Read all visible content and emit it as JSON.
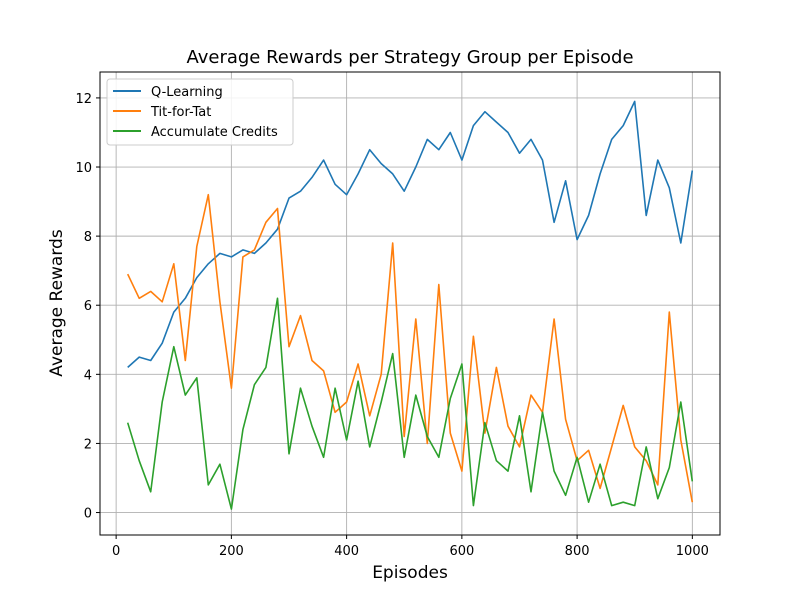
{
  "chart_data": {
    "type": "line",
    "title": "Average Rewards per Strategy Group per Episode",
    "xlabel": "Episodes",
    "ylabel": "Average Rewards",
    "xlim": [
      -28,
      1048
    ],
    "ylim": [
      -0.65,
      12.75
    ],
    "xticks": [
      "0",
      "200",
      "400",
      "600",
      "800",
      "1000"
    ],
    "yticks": [
      "0",
      "2",
      "4",
      "6",
      "8",
      "10",
      "12"
    ],
    "grid": true,
    "legend_position": "top-left",
    "x": [
      20,
      40,
      60,
      80,
      100,
      120,
      140,
      160,
      180,
      200,
      220,
      240,
      260,
      280,
      300,
      320,
      340,
      360,
      380,
      400,
      420,
      440,
      460,
      480,
      500,
      520,
      540,
      560,
      580,
      600,
      620,
      640,
      660,
      680,
      700,
      720,
      740,
      760,
      780,
      800,
      820,
      840,
      860,
      880,
      900,
      920,
      940,
      960,
      980,
      1000
    ],
    "series": [
      {
        "name": "Q-Learning",
        "color": "#1f77b4",
        "values": [
          4.2,
          4.5,
          4.4,
          4.9,
          5.8,
          6.2,
          6.8,
          7.2,
          7.5,
          7.4,
          7.6,
          7.5,
          7.8,
          8.2,
          9.1,
          9.3,
          9.7,
          10.2,
          9.5,
          9.2,
          9.8,
          10.5,
          10.1,
          9.8,
          9.3,
          10.0,
          10.8,
          10.5,
          11.0,
          10.2,
          11.2,
          11.6,
          11.3,
          11.0,
          10.4,
          10.8,
          10.2,
          8.4,
          9.6,
          7.9,
          8.6,
          9.8,
          10.8,
          11.2,
          11.9,
          8.6,
          10.2,
          9.4,
          7.8,
          9.9
        ]
      },
      {
        "name": "Tit-for-Tat",
        "color": "#ff7f0e",
        "values": [
          6.9,
          6.2,
          6.4,
          6.1,
          7.2,
          4.4,
          7.7,
          9.2,
          6.1,
          3.6,
          7.4,
          7.6,
          8.4,
          8.8,
          4.8,
          5.7,
          4.4,
          4.1,
          2.9,
          3.2,
          4.3,
          2.8,
          4.0,
          7.8,
          2.2,
          5.6,
          2.0,
          6.6,
          2.3,
          1.2,
          5.1,
          2.3,
          4.2,
          2.5,
          1.9,
          3.4,
          2.9,
          5.6,
          2.7,
          1.5,
          1.8,
          0.7,
          1.9,
          3.1,
          1.9,
          1.5,
          0.8,
          5.8,
          2.1,
          0.3
        ]
      },
      {
        "name": "Accumulate Credits",
        "color": "#2ca02c",
        "values": [
          2.6,
          1.5,
          0.6,
          3.2,
          4.8,
          3.4,
          3.9,
          0.8,
          1.4,
          0.1,
          2.4,
          3.7,
          4.2,
          6.2,
          1.7,
          3.6,
          2.5,
          1.6,
          3.6,
          2.1,
          3.8,
          1.9,
          3.2,
          4.6,
          1.6,
          3.4,
          2.2,
          1.6,
          3.3,
          4.3,
          0.2,
          2.6,
          1.5,
          1.2,
          2.8,
          0.6,
          2.9,
          1.2,
          0.5,
          1.6,
          0.3,
          1.4,
          0.2,
          0.3,
          0.2,
          1.9,
          0.4,
          1.3,
          3.2,
          0.9
        ]
      }
    ]
  }
}
